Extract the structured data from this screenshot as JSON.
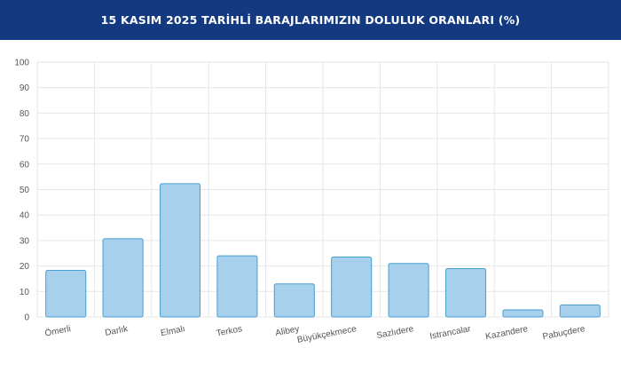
{
  "header": {
    "title": "15 KASIM 2025 TARİHLİ BARAJLARIMIZIN DOLULUK ORANLARI (%)"
  },
  "colors": {
    "header_bg": "#133a80",
    "bar_fill": "#a6d0ec",
    "bar_stroke": "#4a9fd0"
  },
  "chart_data": {
    "type": "bar",
    "title": "15 KASIM 2025 TARİHLİ BARAJLARIMIZIN DOLULUK ORANLARI (%)",
    "categories": [
      "Ömerli",
      "Darlık",
      "Elmalı",
      "Terkos",
      "Alibey",
      "Büyükçekmece",
      "Sazlıdere",
      "Istrancalar",
      "Kazandere",
      "Pabuçdere"
    ],
    "values": [
      18.3,
      30.7,
      52.3,
      24.0,
      13.0,
      23.5,
      21.0,
      19.0,
      2.8,
      4.7
    ],
    "ylim": [
      0,
      100
    ],
    "yticks": [
      0,
      10,
      20,
      30,
      40,
      50,
      60,
      70,
      80,
      90,
      100
    ],
    "grid": true,
    "legend": "none"
  }
}
